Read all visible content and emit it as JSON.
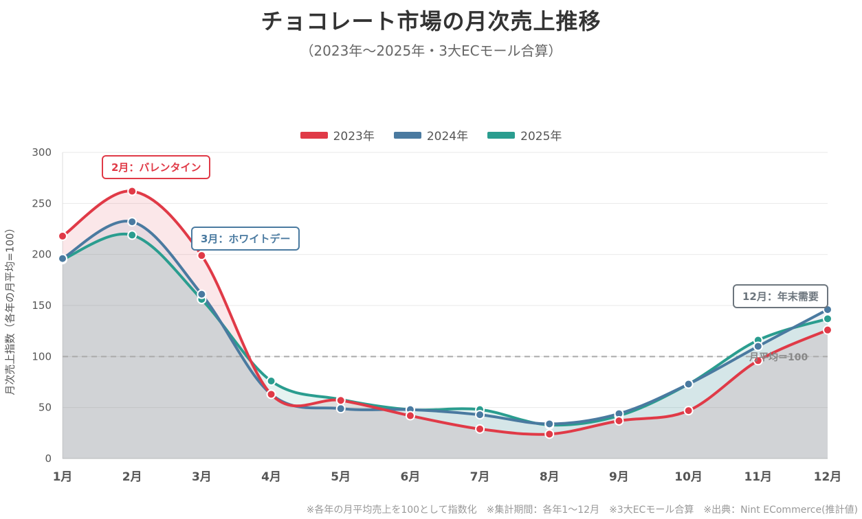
{
  "title": "チョコレート市場の月次売上推移",
  "subtitle": "（2023年〜2025年・3大ECモール合算）",
  "footnote": "※各年の月平均売上を100として指数化　※集計期間：各年1〜12月　※3大ECモール合算　※出典：Nint ECommerce(推計値)",
  "chart_data": {
    "type": "line",
    "categories": [
      "1月",
      "2月",
      "3月",
      "4月",
      "5月",
      "6月",
      "7月",
      "8月",
      "9月",
      "10月",
      "11月",
      "12月"
    ],
    "series": [
      {
        "name": "2023年",
        "color": "#e03a47",
        "values": [
          218,
          262,
          199,
          63,
          57,
          42,
          29,
          24,
          37,
          47,
          96,
          126
        ]
      },
      {
        "name": "2024年",
        "color": "#4a7aa0",
        "values": [
          196,
          232,
          161,
          63,
          49,
          48,
          43,
          34,
          44,
          73,
          110,
          146
        ]
      },
      {
        "name": "2025年",
        "color": "#2a9d8f",
        "values": [
          195,
          219,
          156,
          76,
          58,
          48,
          48,
          33,
          42,
          73,
          116,
          137
        ]
      }
    ],
    "ylabel": "月次売上指数（各年の月平均=100）",
    "ylim": [
      0,
      300
    ],
    "yticks": [
      0,
      50,
      100,
      150,
      200,
      250,
      300
    ],
    "grid": true,
    "legend": "top-center",
    "reference_line": {
      "value": 100,
      "label": "月平均＝100"
    },
    "annotations": [
      {
        "text": "2月：バレンタイン",
        "color": "#e03a47"
      },
      {
        "text": "3月：ホワイトデー",
        "color": "#4a7aa0"
      },
      {
        "text": "12月：年末需要",
        "color": "#6c757d"
      }
    ]
  }
}
